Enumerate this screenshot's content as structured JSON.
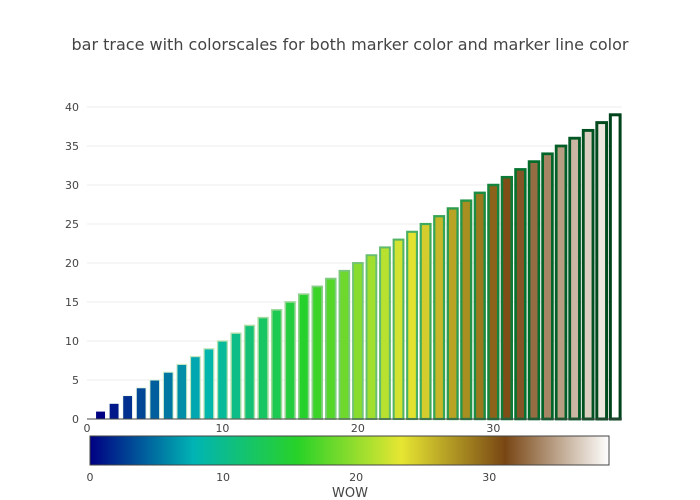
{
  "chart_data": {
    "type": "bar",
    "title": "bar trace with colorscales for both marker color and marker line color",
    "x": [
      1,
      2,
      3,
      4,
      5,
      6,
      7,
      8,
      9,
      10,
      11,
      12,
      13,
      14,
      15,
      16,
      17,
      18,
      19,
      20,
      21,
      22,
      23,
      24,
      25,
      26,
      27,
      28,
      29,
      30,
      31,
      32,
      33,
      34,
      35,
      36,
      37,
      38,
      39
    ],
    "values": [
      1,
      2,
      3,
      4,
      5,
      6,
      7,
      8,
      9,
      10,
      11,
      12,
      13,
      14,
      15,
      16,
      17,
      18,
      19,
      20,
      21,
      22,
      23,
      24,
      25,
      26,
      27,
      28,
      29,
      30,
      31,
      32,
      33,
      34,
      35,
      36,
      37,
      38,
      39
    ],
    "xlim": [
      0,
      39.5
    ],
    "ylim": [
      0,
      40
    ],
    "x_ticks": [
      "0",
      "10",
      "20",
      "30"
    ],
    "y_ticks": [
      "0",
      "5",
      "10",
      "15",
      "20",
      "25",
      "30",
      "35",
      "40"
    ],
    "grid": true,
    "marker_colorscale": "Earth",
    "marker_colorscale_stops": [
      "#000082",
      "#00b4b4",
      "#28d228",
      "#e6e632",
      "#784614",
      "#ffffff"
    ],
    "marker_line_colorscale": "Greens",
    "marker_line_colorscale_stops": [
      "#ffffff",
      "#c7e9c0",
      "#a1d99b",
      "#74c476",
      "#31a354",
      "#006d2c",
      "#00441b"
    ],
    "colorbar": {
      "title": "WOW",
      "range": [
        0,
        39
      ],
      "ticks": [
        "0",
        "10",
        "20",
        "30"
      ]
    }
  }
}
